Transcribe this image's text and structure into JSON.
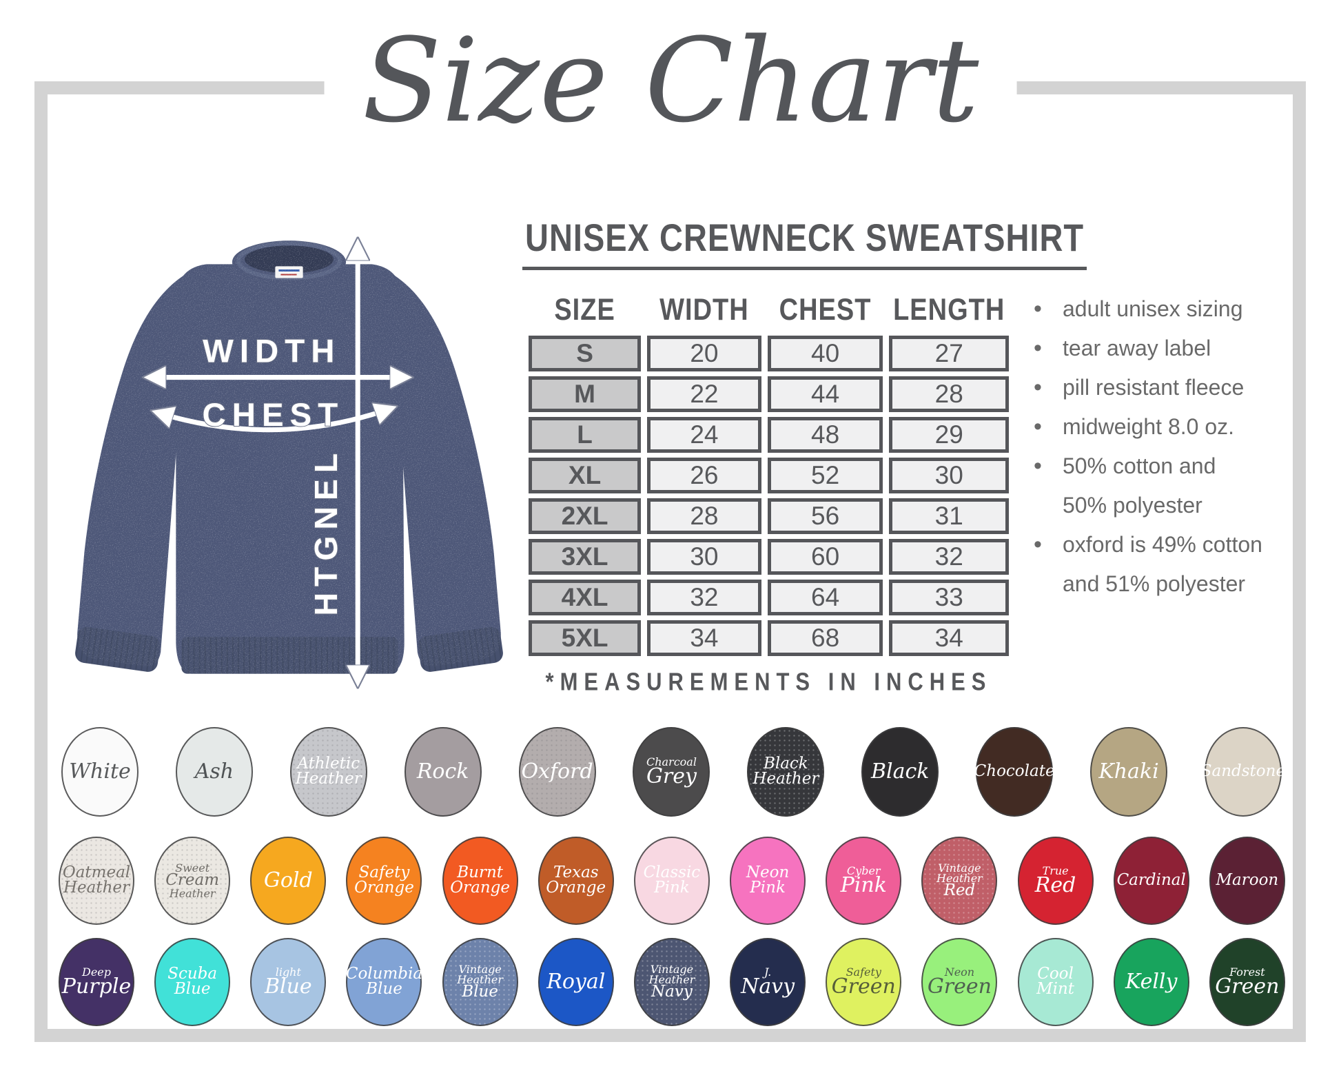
{
  "page_title": "Size Chart",
  "product": {
    "name": "UNISEX CREWNECK SWEATSHIRT",
    "size_table": {
      "columns": [
        "SIZE",
        "WIDTH",
        "CHEST",
        "LENGTH"
      ],
      "rows": [
        {
          "size": "S",
          "width": "20",
          "chest": "40",
          "length": "27"
        },
        {
          "size": "M",
          "width": "22",
          "chest": "44",
          "length": "28"
        },
        {
          "size": "L",
          "width": "24",
          "chest": "48",
          "length": "29"
        },
        {
          "size": "XL",
          "width": "26",
          "chest": "52",
          "length": "30"
        },
        {
          "size": "2XL",
          "width": "28",
          "chest": "56",
          "length": "31"
        },
        {
          "size": "3XL",
          "width": "30",
          "chest": "60",
          "length": "32"
        },
        {
          "size": "4XL",
          "width": "32",
          "chest": "64",
          "length": "33"
        },
        {
          "size": "5XL",
          "width": "34",
          "chest": "68",
          "length": "34"
        }
      ]
    },
    "footnote": "*MEASUREMENTS IN INCHES",
    "features": [
      [
        "adult unisex sizing"
      ],
      [
        "tear away label"
      ],
      [
        "pill resistant fleece"
      ],
      [
        "midweight 8.0 oz."
      ],
      [
        "50% cotton and",
        "50% polyester"
      ],
      [
        "oxford is 49% cotton",
        "and 51% polyester"
      ]
    ]
  },
  "diagram": {
    "width_label": "WIDTH",
    "chest_label": "CHEST",
    "length_label": "LENGTH",
    "shirt_color": "#4d5778"
  },
  "swatch_rows": [
    [
      {
        "name": "White",
        "lines": [
          [
            "White",
            "lg"
          ]
        ],
        "bg": "#fafafa",
        "fg": "#56585a"
      },
      {
        "name": "Ash",
        "lines": [
          [
            "Ash",
            "lg"
          ]
        ],
        "bg": "#e5e9e8",
        "fg": "#4f5355"
      },
      {
        "name": "Athletic Heather",
        "lines": [
          [
            "Athletic",
            "md"
          ],
          [
            "Heather",
            "md"
          ]
        ],
        "bg": "#c6c7cb",
        "fg": "#ffffff",
        "texture": "specks-dark"
      },
      {
        "name": "Rock",
        "lines": [
          [
            "Rock",
            "lg"
          ]
        ],
        "bg": "#a49da0",
        "fg": "#ffffff"
      },
      {
        "name": "Oxford",
        "lines": [
          [
            "Oxford",
            "lg"
          ]
        ],
        "bg": "#b3adad",
        "fg": "#ffffff",
        "texture": "specks-dark"
      },
      {
        "name": "Charcoal Grey",
        "lines": [
          [
            "Charcoal",
            "sm"
          ],
          [
            "Grey",
            "lg"
          ]
        ],
        "bg": "#4c4b4c",
        "fg": "#ffffff"
      },
      {
        "name": "Black Heather",
        "lines": [
          [
            "Black",
            "md"
          ],
          [
            "Heather",
            "md"
          ]
        ],
        "bg": "#36373b",
        "fg": "#ffffff",
        "texture": "specks-light"
      },
      {
        "name": "Black",
        "lines": [
          [
            "Black",
            "lg"
          ]
        ],
        "bg": "#2d2c2e",
        "fg": "#ffffff"
      },
      {
        "name": "Chocolate",
        "lines": [
          [
            "Chocolate",
            "md"
          ]
        ],
        "bg": "#422b23",
        "fg": "#ffffff"
      },
      {
        "name": "Khaki",
        "lines": [
          [
            "Khaki",
            "lg"
          ]
        ],
        "bg": "#b5a683",
        "fg": "#ffffff"
      },
      {
        "name": "Sandstone",
        "lines": [
          [
            "Sandstone",
            "md"
          ]
        ],
        "bg": "#dcd4c6",
        "fg": "#ffffff"
      }
    ],
    [
      {
        "name": "Oatmeal Heather",
        "lines": [
          [
            "Oatmeal",
            "md"
          ],
          [
            "Heather",
            "md"
          ]
        ],
        "bg": "#ebe7e2",
        "fg": "#76726d",
        "texture": "specks-dark"
      },
      {
        "name": "Sweet Cream Heather",
        "lines": [
          [
            "Sweet",
            "sm"
          ],
          [
            "Cream",
            "md"
          ],
          [
            "Heather",
            "sm"
          ]
        ],
        "bg": "#ebe8e2",
        "fg": "#6f6c67",
        "texture": "specks-dark"
      },
      {
        "name": "Gold",
        "lines": [
          [
            "Gold",
            "lg"
          ]
        ],
        "bg": "#f6a81f",
        "fg": "#ffffff"
      },
      {
        "name": "Safety Orange",
        "lines": [
          [
            "Safety",
            "md"
          ],
          [
            "Orange",
            "md"
          ]
        ],
        "bg": "#f58220",
        "fg": "#ffffff"
      },
      {
        "name": "Burnt Orange",
        "lines": [
          [
            "Burnt",
            "md"
          ],
          [
            "Orange",
            "md"
          ]
        ],
        "bg": "#f25a22",
        "fg": "#ffffff"
      },
      {
        "name": "Texas Orange",
        "lines": [
          [
            "Texas",
            "md"
          ],
          [
            "Orange",
            "md"
          ]
        ],
        "bg": "#c05c28",
        "fg": "#ffffff"
      },
      {
        "name": "Classic Pink",
        "lines": [
          [
            "Classic",
            "md"
          ],
          [
            "Pink",
            "md"
          ]
        ],
        "bg": "#f8d8e2",
        "fg": "#ffffff"
      },
      {
        "name": "Neon Pink",
        "lines": [
          [
            "Neon",
            "md"
          ],
          [
            "Pink",
            "md"
          ]
        ],
        "bg": "#f673bf",
        "fg": "#ffffff"
      },
      {
        "name": "Cyber Pink",
        "lines": [
          [
            "Cyber",
            "sm"
          ],
          [
            "Pink",
            "lg"
          ]
        ],
        "bg": "#ef5e98",
        "fg": "#ffffff"
      },
      {
        "name": "Vintage Heather Red",
        "lines": [
          [
            "Vintage",
            "sm"
          ],
          [
            "Heather",
            "sm"
          ],
          [
            "Red",
            "md"
          ]
        ],
        "bg": "#c05f68",
        "fg": "#ffffff",
        "texture": "specks-light"
      },
      {
        "name": "True Red",
        "lines": [
          [
            "True",
            "sm"
          ],
          [
            "Red",
            "lg"
          ]
        ],
        "bg": "#d52331",
        "fg": "#ffffff"
      },
      {
        "name": "Cardinal",
        "lines": [
          [
            "Cardinal",
            "md"
          ]
        ],
        "bg": "#8e2136",
        "fg": "#ffffff"
      },
      {
        "name": "Maroon",
        "lines": [
          [
            "Maroon",
            "md"
          ]
        ],
        "bg": "#5b2134",
        "fg": "#ffffff"
      }
    ],
    [
      {
        "name": "Deep Purple",
        "lines": [
          [
            "Deep",
            "sm"
          ],
          [
            "Purple",
            "lg"
          ]
        ],
        "bg": "#443166",
        "fg": "#ffffff"
      },
      {
        "name": "Scuba Blue",
        "lines": [
          [
            "Scuba",
            "md"
          ],
          [
            "Blue",
            "md"
          ]
        ],
        "bg": "#41e1d8",
        "fg": "#ffffff"
      },
      {
        "name": "Light Blue",
        "lines": [
          [
            "light",
            "sm"
          ],
          [
            "Blue",
            "lg"
          ]
        ],
        "bg": "#a7c4e2",
        "fg": "#ffffff"
      },
      {
        "name": "Columbia Blue",
        "lines": [
          [
            "Columbia",
            "md"
          ],
          [
            "Blue",
            "md"
          ]
        ],
        "bg": "#81a3d5",
        "fg": "#ffffff"
      },
      {
        "name": "Vintage Heather Blue",
        "lines": [
          [
            "Vintage",
            "sm"
          ],
          [
            "Heather",
            "sm"
          ],
          [
            "Blue",
            "md"
          ]
        ],
        "bg": "#6d82aa",
        "fg": "#ffffff",
        "texture": "specks-light"
      },
      {
        "name": "Royal",
        "lines": [
          [
            "Royal",
            "lg"
          ]
        ],
        "bg": "#1c57c6",
        "fg": "#ffffff"
      },
      {
        "name": "Vintage Heather Navy",
        "lines": [
          [
            "Vintage",
            "sm"
          ],
          [
            "Heather",
            "sm"
          ],
          [
            "Navy",
            "md"
          ]
        ],
        "bg": "#4d5672",
        "fg": "#ffffff",
        "texture": "specks-light"
      },
      {
        "name": "J. Navy",
        "lines": [
          [
            "J.",
            "sm"
          ],
          [
            "Navy",
            "lg"
          ]
        ],
        "bg": "#242d4e",
        "fg": "#ffffff"
      },
      {
        "name": "Safety Green",
        "lines": [
          [
            "Safety",
            "sm"
          ],
          [
            "Green",
            "lg"
          ]
        ],
        "bg": "#dff160",
        "fg": "#565e39"
      },
      {
        "name": "Neon Green",
        "lines": [
          [
            "Neon",
            "sm"
          ],
          [
            "Green",
            "lg"
          ]
        ],
        "bg": "#98f07c",
        "fg": "#4e6050"
      },
      {
        "name": "Cool Mint",
        "lines": [
          [
            "Cool",
            "md"
          ],
          [
            "Mint",
            "md"
          ]
        ],
        "bg": "#a7e9d4",
        "fg": "#ffffff"
      },
      {
        "name": "Kelly",
        "lines": [
          [
            "Kelly",
            "lg"
          ]
        ],
        "bg": "#18a45d",
        "fg": "#ffffff"
      },
      {
        "name": "Forest Green",
        "lines": [
          [
            "Forest",
            "sm"
          ],
          [
            "Green",
            "lg"
          ]
        ],
        "bg": "#204229",
        "fg": "#ffffff"
      }
    ]
  ]
}
